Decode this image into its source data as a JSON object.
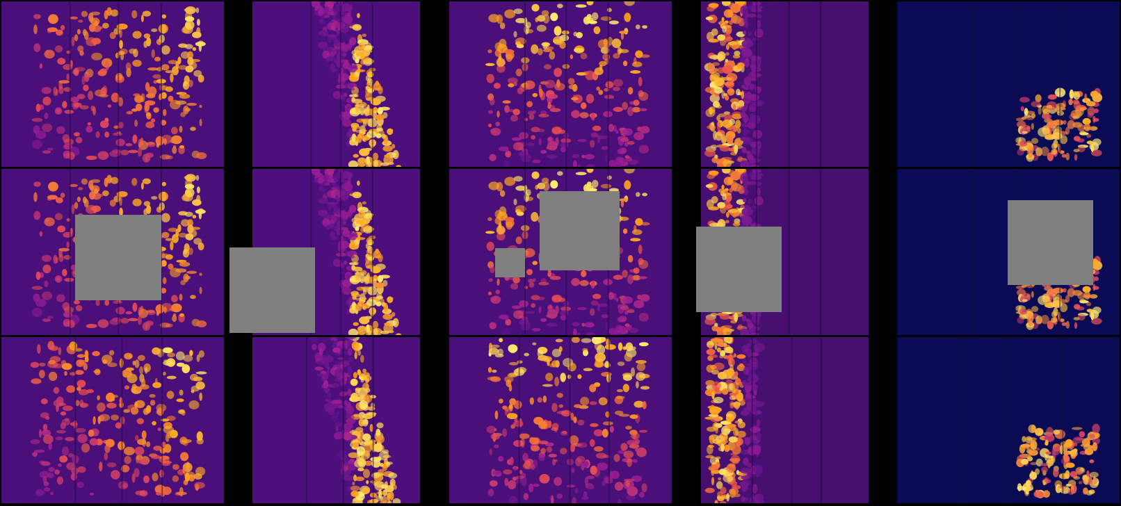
{
  "figure": {
    "background": "#000000",
    "mask_color": "#808080",
    "rows": [
      {
        "role": "original"
      },
      {
        "role": "masked"
      },
      {
        "role": "reconstructed"
      }
    ],
    "columns": [
      {
        "palette": "purple-fire",
        "base": "#4a0f78"
      },
      {
        "palette": "purple-fire",
        "base": "#4c0f7c"
      },
      {
        "palette": "purple-fire",
        "base": "#4a0f78"
      },
      {
        "palette": "purple-fire",
        "base": "#470f70"
      },
      {
        "palette": "navy-fire",
        "base": "#0a0a55"
      }
    ]
  }
}
